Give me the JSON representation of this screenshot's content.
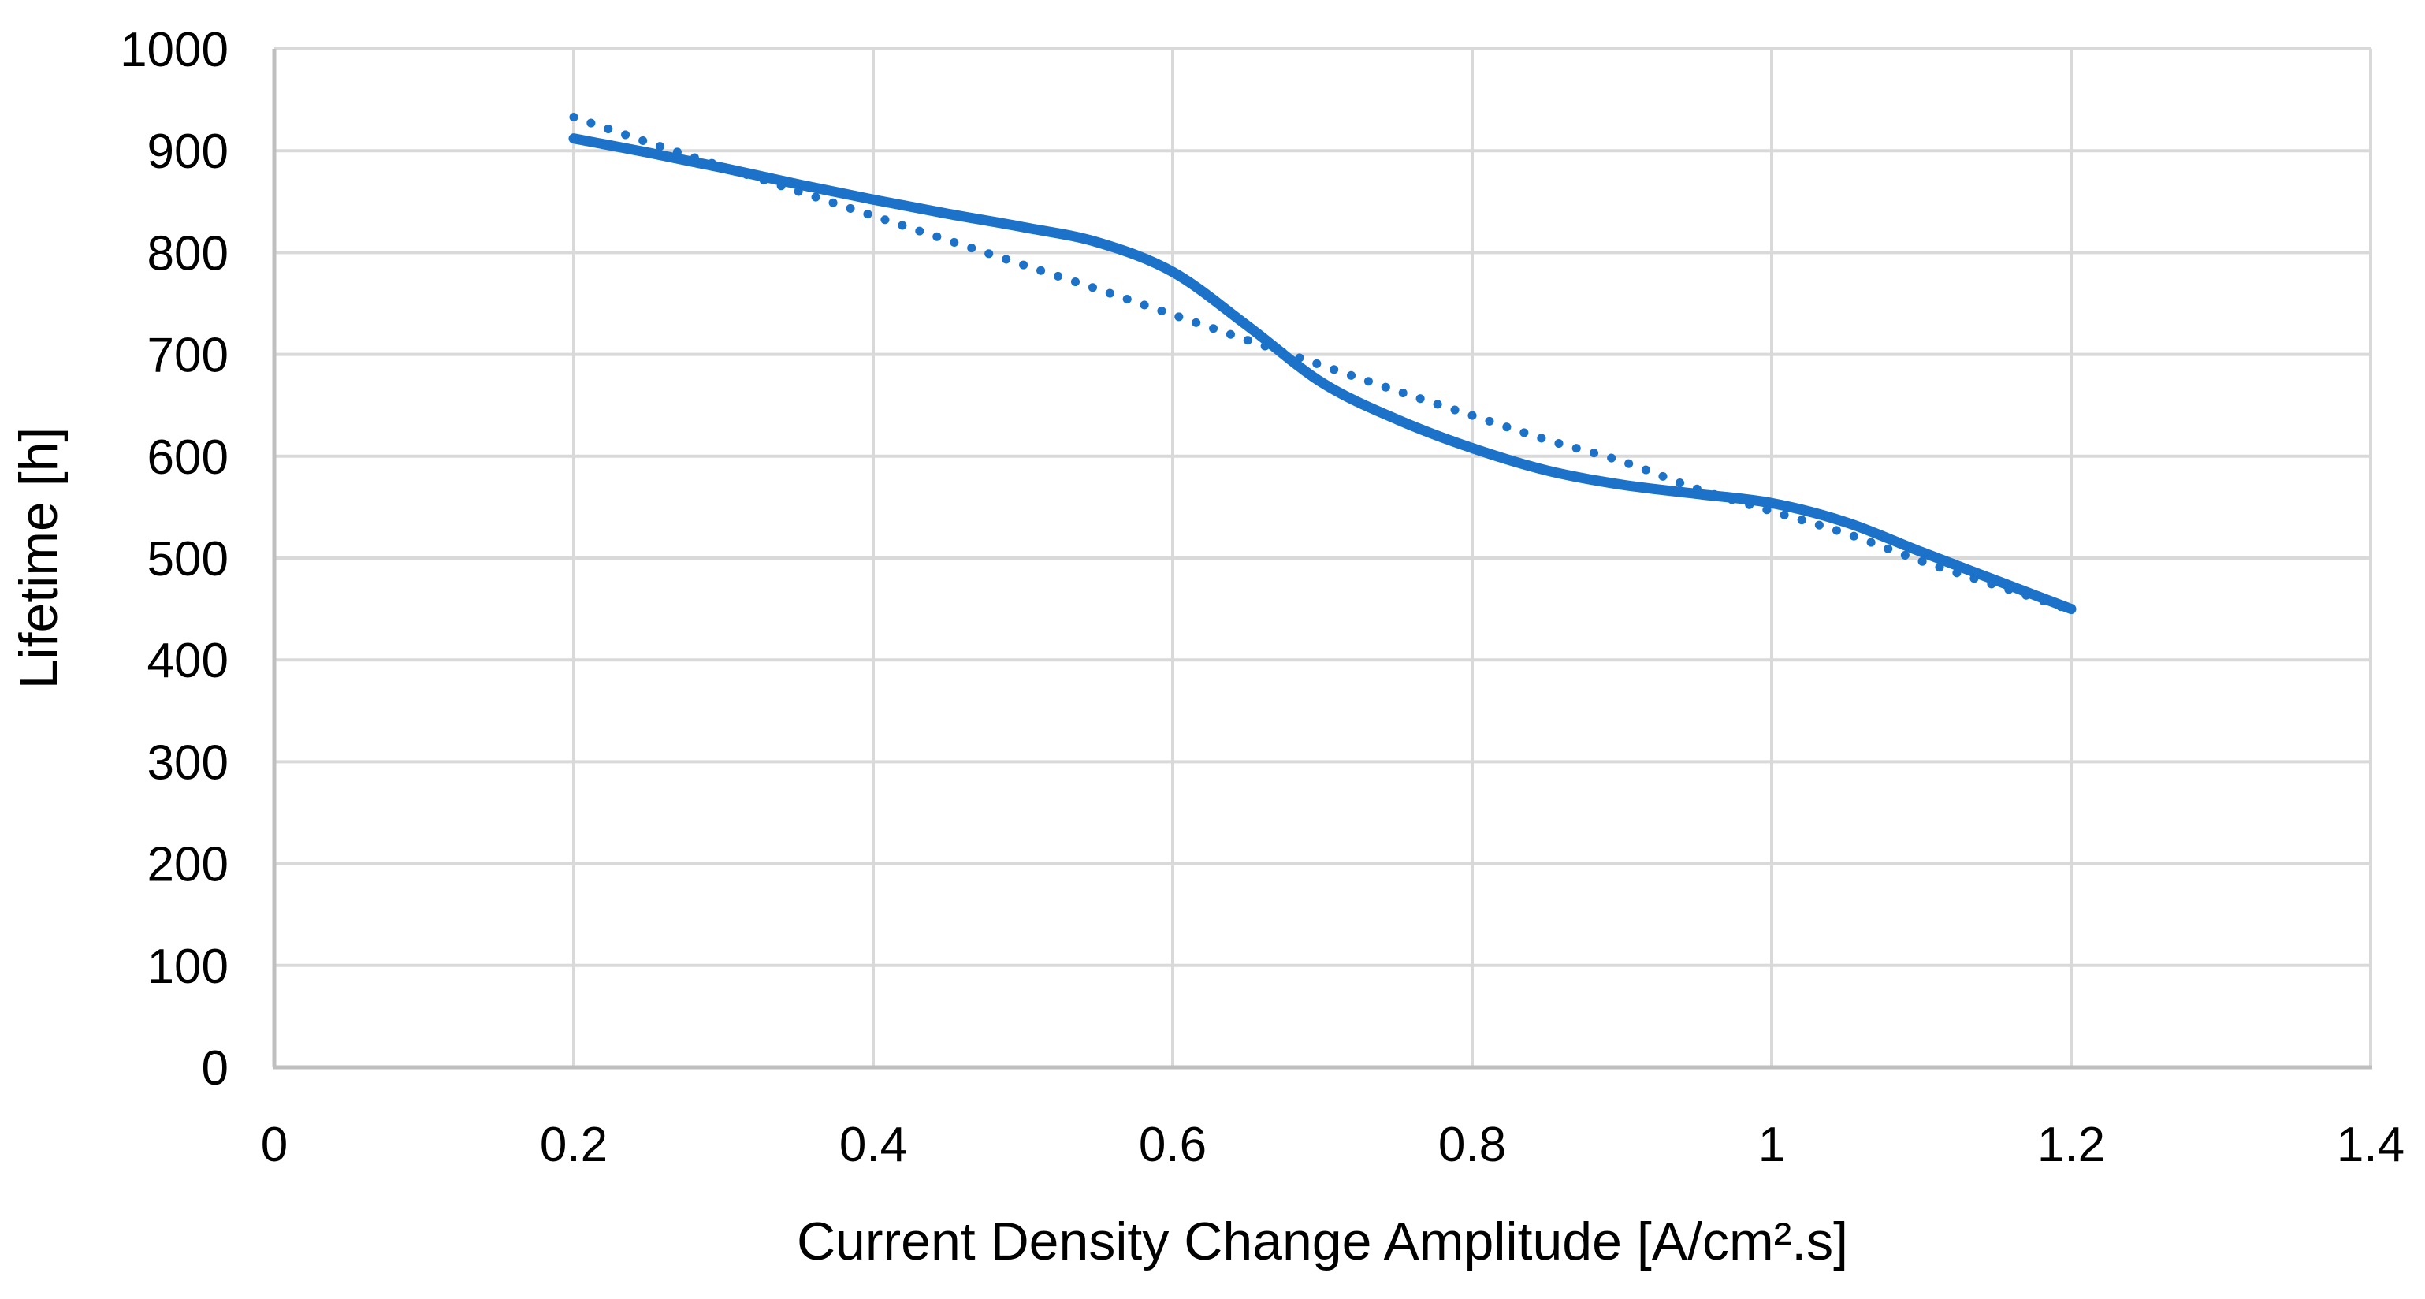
{
  "chart_data": {
    "type": "line",
    "title": "",
    "xlabel": "Current Density Change Amplitude [A/cm².s]",
    "ylabel": "Lifetime [h]",
    "xlim": [
      0,
      1.4
    ],
    "ylim": [
      0,
      1000
    ],
    "x_ticks": [
      0,
      0.2,
      0.4,
      0.6,
      0.8,
      1,
      1.2,
      1.4
    ],
    "x_tick_labels": [
      "0",
      "0.2",
      "0.4",
      "0.6",
      "0.8",
      "1",
      "1.2",
      "1.4"
    ],
    "y_ticks": [
      0,
      100,
      200,
      300,
      400,
      500,
      600,
      700,
      800,
      900,
      1000
    ],
    "y_tick_labels": [
      "0",
      "100",
      "200",
      "300",
      "400",
      "500",
      "600",
      "700",
      "800",
      "900",
      "1000"
    ],
    "grid": true,
    "legend_position": "none",
    "colors": {
      "series_blue": "#1B72C8",
      "gridline": "#D9D9D9",
      "axis_line": "#BFBFBF",
      "text": "#000000",
      "background": "#FFFFFF"
    },
    "series": [
      {
        "name": "Lifetime curve (solid smoothed line)",
        "style": "solid",
        "points": [
          [
            0.2,
            912
          ],
          [
            0.25,
            898
          ],
          [
            0.3,
            883
          ],
          [
            0.35,
            867
          ],
          [
            0.4,
            852
          ],
          [
            0.45,
            838
          ],
          [
            0.5,
            825
          ],
          [
            0.55,
            810
          ],
          [
            0.6,
            781
          ],
          [
            0.65,
            728
          ],
          [
            0.7,
            672
          ],
          [
            0.75,
            636
          ],
          [
            0.8,
            608
          ],
          [
            0.85,
            586
          ],
          [
            0.9,
            572
          ],
          [
            0.95,
            563
          ],
          [
            1.0,
            554
          ],
          [
            1.05,
            535
          ],
          [
            1.1,
            506
          ],
          [
            1.15,
            478
          ],
          [
            1.2,
            450
          ]
        ]
      },
      {
        "name": "Trendline (dotted)",
        "style": "dotted",
        "points": [
          [
            0.2,
            933
          ],
          [
            0.25,
            908
          ],
          [
            0.3,
            884
          ],
          [
            0.35,
            860
          ],
          [
            0.4,
            836
          ],
          [
            0.45,
            812
          ],
          [
            0.5,
            788
          ],
          [
            0.55,
            764
          ],
          [
            0.6,
            739
          ],
          [
            0.65,
            714
          ],
          [
            0.7,
            689
          ],
          [
            0.75,
            664
          ],
          [
            0.8,
            640
          ],
          [
            0.85,
            616
          ],
          [
            0.9,
            595
          ],
          [
            0.95,
            568
          ],
          [
            1.0,
            546
          ],
          [
            1.05,
            524
          ],
          [
            1.1,
            497
          ],
          [
            1.15,
            473
          ],
          [
            1.2,
            449
          ]
        ]
      }
    ]
  }
}
